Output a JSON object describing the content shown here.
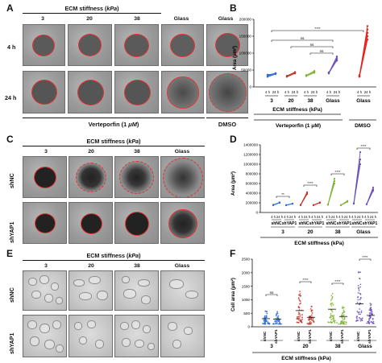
{
  "panels": {
    "A": {
      "label": "A",
      "header": "ECM stiffness (kPa)",
      "header_prefix": "ECM stiffness (",
      "header_unit": "kPa",
      "columns": [
        "3",
        "20",
        "38",
        "Glass",
        "Glass"
      ],
      "rows": [
        "4 h",
        "24 h"
      ],
      "treatment_left": "Verteporfin (1 μM)",
      "treatment_left_prefix": "Verteporfin (1 ",
      "treatment_left_unit": "μM",
      "treatment_right": "DMSO"
    },
    "B": {
      "label": "B",
      "ylabel": "Area (μm²)",
      "yticks": [
        "200000",
        "150000",
        "100000",
        "50000",
        "0"
      ],
      "time_labels": [
        "4 h",
        "24 h"
      ],
      "xgroups": [
        "3",
        "20",
        "38",
        "Glass",
        "Glass"
      ],
      "xlabel": "ECM stiffness (kPa)",
      "treatment_left": "Verteporfin (1 μM)",
      "treatment_right": "DMSO",
      "sig": [
        "****",
        "ns",
        "ns",
        "ns"
      ]
    },
    "C": {
      "label": "C",
      "header": "ECM stiffness (kPa)",
      "columns": [
        "3",
        "20",
        "38",
        "Glass"
      ],
      "rows": [
        "shNC",
        "shYAP1"
      ]
    },
    "D": {
      "label": "D",
      "ylabel": "Area (μm²)",
      "yticks": [
        "1400000",
        "1200000",
        "1000000",
        "800000",
        "600000",
        "400000",
        "200000",
        "0"
      ],
      "time_labels": [
        "4 h",
        "24 h"
      ],
      "subgroups": [
        "shNC",
        "shYAP1"
      ],
      "xgroups": [
        "3",
        "20",
        "38",
        "Glass"
      ],
      "xlabel": "ECM stiffness (kPa)",
      "sig": [
        "**",
        "****",
        "****",
        "****"
      ]
    },
    "E": {
      "label": "E",
      "header": "ECM stiffness (kPa)",
      "columns": [
        "3",
        "20",
        "38",
        "Glass"
      ],
      "rows": [
        "shNC",
        "shYAP1"
      ]
    },
    "F": {
      "label": "F",
      "ylabel": "Cell area (μm²)",
      "yticks": [
        "2500",
        "2000",
        "1500",
        "1000",
        "500",
        "0"
      ],
      "subgroups": [
        "shNC",
        "shYAP1"
      ],
      "xgroups": [
        "3",
        "20",
        "38",
        "Glass"
      ],
      "xlabel": "ECM stiffness (kPa)",
      "sig": [
        "ns",
        "****",
        "****",
        "****"
      ]
    }
  },
  "chart_data": [
    {
      "panel": "B",
      "type": "line",
      "title": "",
      "ylabel": "Area (μm²)",
      "xlabel": "ECM stiffness (kPa)",
      "ylim": [
        0,
        200000
      ],
      "categories": [
        "3",
        "20",
        "38",
        "Glass",
        "Glass"
      ],
      "x": [
        "4 h",
        "24 h"
      ],
      "series": [
        {
          "group": "3",
          "treatment": "Verteporfin (1 μM)",
          "values": [
            [
              30000,
              38000
            ],
            [
              32000,
              40000
            ],
            [
              34000,
              41000
            ],
            [
              36000,
              39000
            ]
          ]
        },
        {
          "group": "20",
          "treatment": "Verteporfin (1 μM)",
          "values": [
            [
              30000,
              40000
            ],
            [
              31000,
              42000
            ],
            [
              32000,
              44000
            ],
            [
              33000,
              43000
            ]
          ]
        },
        {
          "group": "38",
          "treatment": "Verteporfin (1 μM)",
          "values": [
            [
              32000,
              42000
            ],
            [
              33000,
              45000
            ],
            [
              34000,
              47000
            ],
            [
              35000,
              44000
            ]
          ]
        },
        {
          "group": "Glass",
          "treatment": "Verteporfin (1 μM)",
          "values": [
            [
              40000,
              80000
            ],
            [
              42000,
              85000
            ],
            [
              41000,
              90000
            ],
            [
              43000,
              78000
            ]
          ]
        },
        {
          "group": "Glass",
          "treatment": "DMSO",
          "values": [
            [
              30000,
              140000
            ],
            [
              32000,
              160000
            ],
            [
              31000,
              180000
            ],
            [
              33000,
              150000
            ],
            [
              35000,
              170000
            ]
          ]
        }
      ],
      "colors": [
        "#2f6fd6",
        "#c0392b",
        "#7fb433",
        "#6a4fb8",
        "#e52421"
      ],
      "grid": false
    },
    {
      "panel": "D",
      "type": "line",
      "title": "",
      "ylabel": "Area (μm²)",
      "xlabel": "ECM stiffness (kPa)",
      "ylim": [
        0,
        1400000
      ],
      "categories": [
        "3",
        "20",
        "38",
        "Glass"
      ],
      "subgroups": [
        "shNC",
        "shYAP1"
      ],
      "x": [
        "4 h",
        "24 h"
      ],
      "series": [
        {
          "group": "3",
          "subgroup": "shNC",
          "values": [
            [
              150000,
              200000
            ],
            [
              150000,
              210000
            ],
            [
              160000,
              205000
            ]
          ]
        },
        {
          "group": "3",
          "subgroup": "shYAP1",
          "values": [
            [
              150000,
              180000
            ],
            [
              150000,
              185000
            ],
            [
              155000,
              182000
            ]
          ]
        },
        {
          "group": "20",
          "subgroup": "shNC",
          "values": [
            [
              150000,
              380000
            ],
            [
              160000,
              420000
            ],
            [
              155000,
              400000
            ]
          ]
        },
        {
          "group": "20",
          "subgroup": "shYAP1",
          "values": [
            [
              150000,
              200000
            ],
            [
              155000,
              210000
            ],
            [
              152000,
              205000
            ]
          ]
        },
        {
          "group": "38",
          "subgroup": "shNC",
          "values": [
            [
              160000,
              650000
            ],
            [
              170000,
              700000
            ],
            [
              165000,
              600000
            ]
          ]
        },
        {
          "group": "38",
          "subgroup": "shYAP1",
          "values": [
            [
              150000,
              220000
            ],
            [
              155000,
              240000
            ],
            [
              152000,
              230000
            ]
          ]
        },
        {
          "group": "Glass",
          "subgroup": "shNC",
          "values": [
            [
              180000,
              1100000
            ],
            [
              190000,
              1250000
            ],
            [
              185000,
              1000000
            ]
          ]
        },
        {
          "group": "Glass",
          "subgroup": "shYAP1",
          "values": [
            [
              170000,
              450000
            ],
            [
              175000,
              520000
            ],
            [
              172000,
              480000
            ]
          ]
        }
      ],
      "colors": [
        "#2f6fd6",
        "#c0392b",
        "#7fb433",
        "#6a4fb8"
      ],
      "grid": false
    },
    {
      "panel": "F",
      "type": "scatter",
      "title": "",
      "ylabel": "Cell area (μm²)",
      "xlabel": "ECM stiffness (kPa)",
      "ylim": [
        0,
        2500
      ],
      "categories": [
        "3",
        "20",
        "38",
        "Glass"
      ],
      "subgroups": [
        "shNC",
        "shYAP1"
      ],
      "series": [
        {
          "group": "3",
          "subgroup": "shNC",
          "median": 300,
          "min": 100,
          "max": 620
        },
        {
          "group": "3",
          "subgroup": "shYAP1",
          "median": 280,
          "min": 100,
          "max": 580
        },
        {
          "group": "20",
          "subgroup": "shNC",
          "median": 600,
          "min": 150,
          "max": 1400
        },
        {
          "group": "20",
          "subgroup": "shYAP1",
          "median": 350,
          "min": 100,
          "max": 800
        },
        {
          "group": "38",
          "subgroup": "shNC",
          "median": 650,
          "min": 150,
          "max": 1300
        },
        {
          "group": "38",
          "subgroup": "shYAP1",
          "median": 380,
          "min": 100,
          "max": 750
        },
        {
          "group": "Glass",
          "subgroup": "shNC",
          "median": 850,
          "min": 200,
          "max": 2100
        },
        {
          "group": "Glass",
          "subgroup": "shYAP1",
          "median": 420,
          "min": 120,
          "max": 900
        }
      ],
      "colors": [
        "#2f6fd6",
        "#c0392b",
        "#7fb433",
        "#6a4fb8"
      ],
      "grid": false
    }
  ]
}
